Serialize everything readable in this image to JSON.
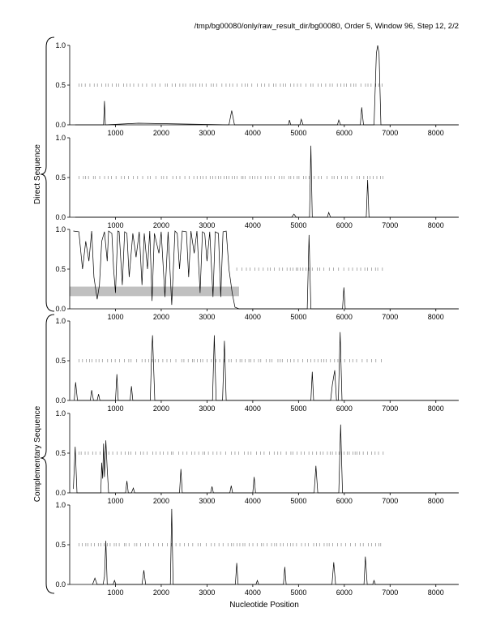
{
  "header": "/tmp/bg00080/only/raw_result_dir/bg00080, Order 5, Window 96, Step 12, 2/2",
  "group_labels": {
    "direct": "Direct Sequence",
    "complementary": "Complementary Sequence"
  },
  "chart_data": {
    "type": "line",
    "xlabel": "Nucleotide Position",
    "x_range": [
      0,
      8500
    ],
    "y_range": [
      0,
      1
    ],
    "x_ticks": [
      1000,
      2000,
      3000,
      4000,
      5000,
      6000,
      7000,
      8000
    ],
    "y_ticks": [
      "0.0",
      "0.5",
      "1.0"
    ],
    "grid": false,
    "panels": [
      {
        "name": "direct-1",
        "series": [
          [
            120,
            0
          ],
          [
            740,
            0
          ],
          [
            760,
            0.3
          ],
          [
            780,
            0
          ],
          [
            1500,
            0.02
          ],
          [
            3480,
            0
          ],
          [
            3540,
            0.18
          ],
          [
            3600,
            0
          ],
          [
            4780,
            0
          ],
          [
            4800,
            0.06
          ],
          [
            4830,
            0
          ],
          [
            5030,
            0
          ],
          [
            5060,
            0.07
          ],
          [
            5100,
            0
          ],
          [
            5850,
            0
          ],
          [
            5880,
            0.06
          ],
          [
            5920,
            0
          ],
          [
            6350,
            0
          ],
          [
            6380,
            0.22
          ],
          [
            6420,
            0
          ],
          [
            6650,
            0
          ],
          [
            6700,
            0.9
          ],
          [
            6730,
            1.0
          ],
          [
            6760,
            0.9
          ],
          [
            6800,
            0
          ],
          [
            8500,
            0
          ]
        ],
        "band": [
          200,
          6900
        ],
        "band_y": 0.5
      },
      {
        "name": "direct-2",
        "series": [
          [
            120,
            0
          ],
          [
            4850,
            0
          ],
          [
            4900,
            0.04
          ],
          [
            4950,
            0
          ],
          [
            5240,
            0
          ],
          [
            5270,
            0.9
          ],
          [
            5300,
            0
          ],
          [
            5630,
            0
          ],
          [
            5660,
            0.06
          ],
          [
            5700,
            0
          ],
          [
            6480,
            0
          ],
          [
            6510,
            0.47
          ],
          [
            6540,
            0
          ],
          [
            8500,
            0
          ]
        ],
        "band": [
          200,
          6900
        ],
        "band_y": 0.5
      },
      {
        "name": "direct-3",
        "series": [
          [
            80,
            0.98
          ],
          [
            200,
            0.97
          ],
          [
            280,
            0.5
          ],
          [
            350,
            0.85
          ],
          [
            420,
            0.6
          ],
          [
            480,
            0.98
          ],
          [
            530,
            0.4
          ],
          [
            600,
            0.12
          ],
          [
            650,
            0.3
          ],
          [
            700,
            0.85
          ],
          [
            760,
            0.97
          ],
          [
            820,
            0.6
          ],
          [
            850,
            0.98
          ],
          [
            920,
            0.95
          ],
          [
            960,
            0.5
          ],
          [
            1000,
            0.2
          ],
          [
            1050,
            0.98
          ],
          [
            1080,
            0.97
          ],
          [
            1150,
            0.3
          ],
          [
            1200,
            0.97
          ],
          [
            1250,
            0.95
          ],
          [
            1300,
            0.4
          ],
          [
            1380,
            0.95
          ],
          [
            1450,
            0.65
          ],
          [
            1520,
            0.97
          ],
          [
            1580,
            0.3
          ],
          [
            1630,
            0.95
          ],
          [
            1700,
            0.5
          ],
          [
            1750,
            0.98
          ],
          [
            1800,
            0.1
          ],
          [
            1850,
            0.95
          ],
          [
            1950,
            0.7
          ],
          [
            2000,
            0.97
          ],
          [
            2080,
            0.15
          ],
          [
            2150,
            0.97
          ],
          [
            2230,
            0.05
          ],
          [
            2300,
            0.98
          ],
          [
            2350,
            0.95
          ],
          [
            2400,
            0.5
          ],
          [
            2460,
            0.98
          ],
          [
            2550,
            0.97
          ],
          [
            2600,
            0.4
          ],
          [
            2650,
            0.98
          ],
          [
            2720,
            0.7
          ],
          [
            2780,
            0.98
          ],
          [
            2850,
            0.2
          ],
          [
            2900,
            0.97
          ],
          [
            2950,
            0.95
          ],
          [
            3000,
            0.6
          ],
          [
            3060,
            0.97
          ],
          [
            3130,
            0.15
          ],
          [
            3180,
            0.97
          ],
          [
            3250,
            0.95
          ],
          [
            3300,
            0.15
          ],
          [
            3350,
            0.97
          ],
          [
            3420,
            0.98
          ],
          [
            3480,
            0.5
          ],
          [
            3550,
            0.2
          ],
          [
            3610,
            0.02
          ],
          [
            3700,
            0
          ],
          [
            5190,
            0
          ],
          [
            5230,
            0.93
          ],
          [
            5270,
            0
          ],
          [
            5960,
            0
          ],
          [
            5990,
            0.27
          ],
          [
            6020,
            0
          ],
          [
            8500,
            0
          ]
        ],
        "band": [
          3650,
          6900
        ],
        "band_y": 0.5,
        "shade": [
          0,
          3700,
          0.16,
          0.28
        ]
      },
      {
        "name": "complementary-1",
        "series": [
          [
            100,
            0
          ],
          [
            130,
            0.23
          ],
          [
            170,
            0
          ],
          [
            450,
            0
          ],
          [
            480,
            0.13
          ],
          [
            520,
            0
          ],
          [
            600,
            0
          ],
          [
            630,
            0.08
          ],
          [
            660,
            0
          ],
          [
            1000,
            0
          ],
          [
            1030,
            0.33
          ],
          [
            1060,
            0
          ],
          [
            1320,
            0
          ],
          [
            1350,
            0.18
          ],
          [
            1380,
            0
          ],
          [
            1760,
            0
          ],
          [
            1790,
            0.6
          ],
          [
            1810,
            0.82
          ],
          [
            1830,
            0.5
          ],
          [
            1860,
            0
          ],
          [
            3120,
            0
          ],
          [
            3160,
            0.82
          ],
          [
            3200,
            0
          ],
          [
            3340,
            0
          ],
          [
            3380,
            0.75
          ],
          [
            3420,
            0
          ],
          [
            5270,
            0
          ],
          [
            5300,
            0.36
          ],
          [
            5330,
            0
          ],
          [
            5700,
            0
          ],
          [
            5740,
            0.2
          ],
          [
            5790,
            0.38
          ],
          [
            5830,
            0
          ],
          [
            5870,
            0
          ],
          [
            5910,
            0.86
          ],
          [
            5950,
            0
          ],
          [
            8500,
            0
          ]
        ],
        "band": [
          200,
          6900
        ],
        "band_y": 0.5
      },
      {
        "name": "complementary-2",
        "series": [
          [
            80,
            0.05
          ],
          [
            120,
            0.58
          ],
          [
            160,
            0
          ],
          [
            680,
            0
          ],
          [
            700,
            0.38
          ],
          [
            720,
            0.18
          ],
          [
            740,
            0.62
          ],
          [
            760,
            0.2
          ],
          [
            790,
            0.66
          ],
          [
            820,
            0.3
          ],
          [
            850,
            0
          ],
          [
            1220,
            0
          ],
          [
            1250,
            0.15
          ],
          [
            1280,
            0
          ],
          [
            1350,
            0
          ],
          [
            1390,
            0.06
          ],
          [
            1420,
            0
          ],
          [
            2400,
            0
          ],
          [
            2430,
            0.3
          ],
          [
            2460,
            0
          ],
          [
            3080,
            0
          ],
          [
            3110,
            0.08
          ],
          [
            3140,
            0
          ],
          [
            3500,
            0
          ],
          [
            3530,
            0.09
          ],
          [
            3560,
            0
          ],
          [
            4000,
            0
          ],
          [
            4030,
            0.2
          ],
          [
            4060,
            0
          ],
          [
            5340,
            0
          ],
          [
            5380,
            0.34
          ],
          [
            5420,
            0
          ],
          [
            5880,
            0
          ],
          [
            5920,
            0.86
          ],
          [
            5960,
            0
          ],
          [
            8500,
            0
          ]
        ],
        "band": [
          200,
          6900
        ],
        "band_y": 0.5
      },
      {
        "name": "complementary-3",
        "series": [
          [
            500,
            0
          ],
          [
            550,
            0.08
          ],
          [
            600,
            0
          ],
          [
            730,
            0
          ],
          [
            760,
            0.1
          ],
          [
            790,
            0.55
          ],
          [
            820,
            0
          ],
          [
            950,
            0
          ],
          [
            980,
            0.05
          ],
          [
            1010,
            0
          ],
          [
            1580,
            0
          ],
          [
            1620,
            0.18
          ],
          [
            1660,
            0
          ],
          [
            2200,
            0
          ],
          [
            2230,
            0.95
          ],
          [
            2260,
            0
          ],
          [
            3620,
            0
          ],
          [
            3650,
            0.27
          ],
          [
            3680,
            0
          ],
          [
            4070,
            0
          ],
          [
            4100,
            0.05
          ],
          [
            4130,
            0
          ],
          [
            4670,
            0
          ],
          [
            4700,
            0.22
          ],
          [
            4730,
            0
          ],
          [
            5730,
            0
          ],
          [
            5770,
            0.28
          ],
          [
            5810,
            0
          ],
          [
            6430,
            0
          ],
          [
            6460,
            0.35
          ],
          [
            6500,
            0
          ],
          [
            6620,
            0
          ],
          [
            6650,
            0.05
          ],
          [
            6680,
            0
          ],
          [
            8500,
            0
          ]
        ],
        "band": [
          200,
          6900
        ],
        "band_y": 0.5
      }
    ]
  }
}
